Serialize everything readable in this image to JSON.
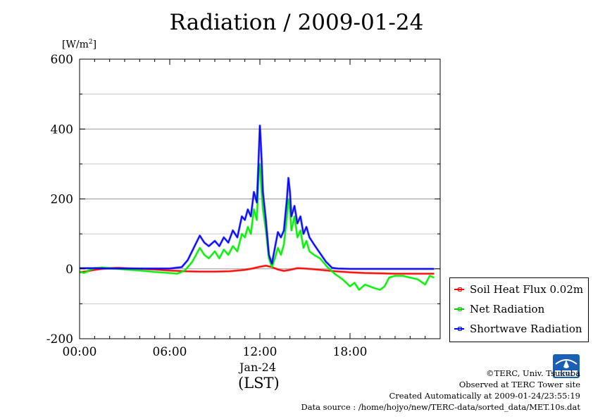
{
  "title": "Radiation / 2009-01-24",
  "unit": "[W/m",
  "unit_sup": "2",
  "unit_close": "]",
  "date_label": "Jan-24",
  "time_zone_label": "(LST)",
  "credits": [
    "©TERC, Univ. Tsukuba",
    "Observed at TERC Tower site",
    "Created Automatically at 2009-01-24/23:55:19",
    "Data source : /home/hojyo/new/TERC-data/sorted_data/MET.10s.dat"
  ],
  "logo_text": "TERC",
  "chart_data": {
    "type": "line",
    "title": "Radiation / 2009-01-24",
    "ylabel": "[W/m2]",
    "xlabel": "Jan-24 (LST)",
    "xlim": [
      0,
      24
    ],
    "ylim": [
      -200,
      600
    ],
    "x_ticks": [
      {
        "value": 0,
        "label": "00:00"
      },
      {
        "value": 6,
        "label": "06:00"
      },
      {
        "value": 12,
        "label": "12:00"
      },
      {
        "value": 18,
        "label": "18:00"
      }
    ],
    "y_ticks": [
      {
        "value": -200,
        "label": "-200"
      },
      {
        "value": 0,
        "label": "0"
      },
      {
        "value": 200,
        "label": "200"
      },
      {
        "value": 400,
        "label": "400"
      },
      {
        "value": 600,
        "label": "600"
      }
    ],
    "grid": "horizontal",
    "legend_position": "bottom-right",
    "series": [
      {
        "name": "Soil Heat Flux 0.02m",
        "color": "#ff0000",
        "x": [
          0,
          0.5,
          1,
          1.5,
          2,
          2.5,
          3,
          4,
          5,
          6,
          7,
          8,
          9,
          10,
          11,
          11.5,
          12,
          12.4,
          12.8,
          13.2,
          13.6,
          14,
          14.5,
          15,
          15.5,
          16,
          17,
          18,
          19,
          20,
          21,
          22,
          23,
          23.6
        ],
        "y": [
          -10,
          -7,
          -3,
          0,
          2,
          3,
          2,
          0,
          -2,
          -5,
          -7,
          -8,
          -8,
          -7,
          -3,
          1,
          6,
          9,
          5,
          -2,
          -6,
          -3,
          2,
          1,
          -1,
          -3,
          -7,
          -10,
          -12,
          -13,
          -14,
          -14,
          -14,
          -14
        ]
      },
      {
        "name": "Net Radiation",
        "color": "#00ee00",
        "x": [
          0,
          0.3,
          0.6,
          1,
          1.5,
          2,
          3,
          4,
          5,
          6,
          6.5,
          7,
          7.5,
          8,
          8.3,
          8.6,
          9,
          9.3,
          9.6,
          9.9,
          10.2,
          10.5,
          10.8,
          11,
          11.2,
          11.4,
          11.6,
          11.8,
          11.9,
          12,
          12.1,
          12.2,
          12.4,
          12.6,
          12.8,
          13,
          13.2,
          13.4,
          13.6,
          13.8,
          13.9,
          14,
          14.1,
          14.3,
          14.5,
          14.7,
          14.9,
          15.1,
          15.3,
          15.6,
          16,
          16.5,
          17,
          17.5,
          18,
          18.3,
          18.6,
          19,
          19.3,
          19.6,
          20,
          20.3,
          20.6,
          21,
          21.5,
          22,
          22.5,
          23,
          23.3,
          23.6
        ],
        "y": [
          -8,
          -12,
          -5,
          2,
          4,
          2,
          -2,
          -5,
          -9,
          -12,
          -14,
          -5,
          20,
          60,
          40,
          30,
          50,
          30,
          55,
          40,
          65,
          50,
          100,
          90,
          120,
          100,
          170,
          140,
          250,
          300,
          230,
          170,
          110,
          30,
          5,
          30,
          60,
          40,
          70,
          150,
          200,
          170,
          110,
          150,
          90,
          110,
          60,
          80,
          50,
          40,
          30,
          5,
          -15,
          -30,
          -50,
          -40,
          -60,
          -45,
          -50,
          -55,
          -60,
          -50,
          -25,
          -20,
          -20,
          -25,
          -30,
          -45,
          -20,
          -25
        ]
      },
      {
        "name": "Shortwave Radiation",
        "color": "#0000ff",
        "x": [
          0,
          1,
          2,
          3,
          4,
          5,
          6,
          6.8,
          7.2,
          7.6,
          8,
          8.3,
          8.6,
          9,
          9.3,
          9.6,
          9.9,
          10.2,
          10.5,
          10.8,
          11,
          11.2,
          11.4,
          11.6,
          11.8,
          11.9,
          12,
          12.1,
          12.2,
          12.4,
          12.6,
          12.8,
          13,
          13.2,
          13.4,
          13.6,
          13.8,
          13.9,
          14,
          14.1,
          14.3,
          14.5,
          14.7,
          14.9,
          15.1,
          15.3,
          15.6,
          16,
          16.4,
          16.8,
          17.2,
          18,
          19,
          20,
          21,
          22,
          23,
          23.6
        ],
        "y": [
          2,
          2,
          1,
          1,
          1,
          1,
          1,
          5,
          25,
          60,
          95,
          75,
          65,
          80,
          65,
          90,
          75,
          110,
          90,
          150,
          140,
          170,
          150,
          220,
          190,
          300,
          410,
          330,
          220,
          140,
          40,
          15,
          60,
          105,
          90,
          110,
          200,
          260,
          220,
          150,
          180,
          130,
          150,
          100,
          120,
          90,
          70,
          45,
          20,
          3,
          1,
          0,
          0,
          0,
          0,
          0,
          0,
          0
        ]
      }
    ]
  }
}
